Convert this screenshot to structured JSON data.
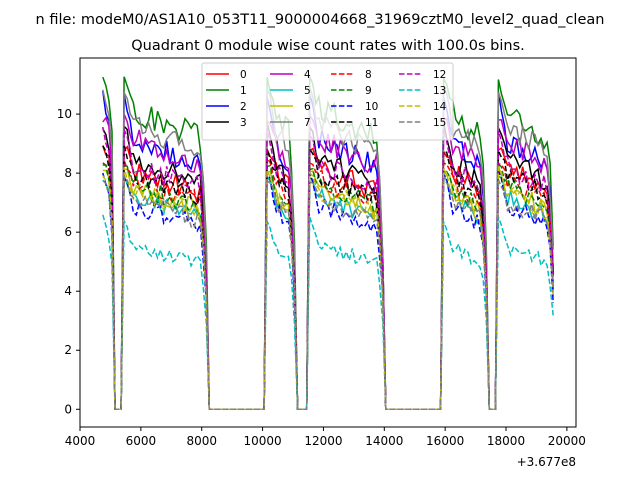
{
  "chart_data": {
    "type": "line",
    "suptitle": "n file: modeM0/AS1A10_053T11_9000004668_31969cztM0_level2_quad_clean",
    "title": "Quadrant 0 module wise count rates with 100.0s bins.",
    "xlabel": "",
    "ylabel": "",
    "x_offset_label": "+3.677e8",
    "xlim": [
      4000,
      20300
    ],
    "ylim": [
      -0.6,
      11.9
    ],
    "xticks": [
      4000,
      6000,
      8000,
      10000,
      12000,
      14000,
      16000,
      18000,
      20000
    ],
    "xtick_labels": [
      "4000",
      "6000",
      "8000",
      "10000",
      "12000",
      "14000",
      "16000",
      "18000",
      "20000"
    ],
    "yticks": [
      0,
      2,
      4,
      6,
      8,
      10
    ],
    "ytick_labels": [
      "0",
      "2",
      "4",
      "6",
      "8",
      "10"
    ],
    "grid": false,
    "legend_position": "upper-center",
    "legend_columns": 4,
    "bin_size_s": 100,
    "x_start": 4750,
    "x_end": 19550,
    "observation_windows": [
      {
        "start": 4750,
        "end": 5050
      },
      {
        "start": 5450,
        "end": 8150
      },
      {
        "start": 10150,
        "end": 11050
      },
      {
        "start": 11550,
        "end": 13950
      },
      {
        "start": 15950,
        "end": 17350
      },
      {
        "start": 17750,
        "end": 19550
      }
    ],
    "series": [
      {
        "name": "0",
        "color": "#ff0000",
        "dash": "solid",
        "level": 8.3,
        "peak": 9.0
      },
      {
        "name": "1",
        "color": "#008000",
        "dash": "solid",
        "level": 10.3,
        "peak": 11.3
      },
      {
        "name": "2",
        "color": "#0000ff",
        "dash": "solid",
        "level": 9.3,
        "peak": 10.8
      },
      {
        "name": "3",
        "color": "#000000",
        "dash": "solid",
        "level": 8.6,
        "peak": 9.8
      },
      {
        "name": "4",
        "color": "#bf00bf",
        "dash": "solid",
        "level": 9.3,
        "peak": 10.0
      },
      {
        "name": "5",
        "color": "#00bfbf",
        "dash": "solid",
        "level": 7.3,
        "peak": 8.0
      },
      {
        "name": "6",
        "color": "#bfbf00",
        "dash": "solid",
        "level": 7.6,
        "peak": 8.3
      },
      {
        "name": "7",
        "color": "#808080",
        "dash": "solid",
        "level": 9.8,
        "peak": 11.0
      },
      {
        "name": "8",
        "color": "#ff0000",
        "dash": "dashed",
        "level": 7.9,
        "peak": 8.5
      },
      {
        "name": "9",
        "color": "#008000",
        "dash": "dashed",
        "level": 7.7,
        "peak": 8.4
      },
      {
        "name": "10",
        "color": "#0000ff",
        "dash": "dashed",
        "level": 7.0,
        "peak": 8.1
      },
      {
        "name": "11",
        "color": "#000000",
        "dash": "dashed",
        "level": 8.1,
        "peak": 9.0
      },
      {
        "name": "12",
        "color": "#bf00bf",
        "dash": "dashed",
        "level": 8.4,
        "peak": 9.6
      },
      {
        "name": "13",
        "color": "#00bfbf",
        "dash": "dashed",
        "level": 5.6,
        "peak": 6.6
      },
      {
        "name": "14",
        "color": "#bfbf00",
        "dash": "dashed",
        "level": 7.5,
        "peak": 8.2
      },
      {
        "name": "15",
        "color": "#808080",
        "dash": "dashed",
        "level": 7.2,
        "peak": 8.0
      }
    ]
  }
}
